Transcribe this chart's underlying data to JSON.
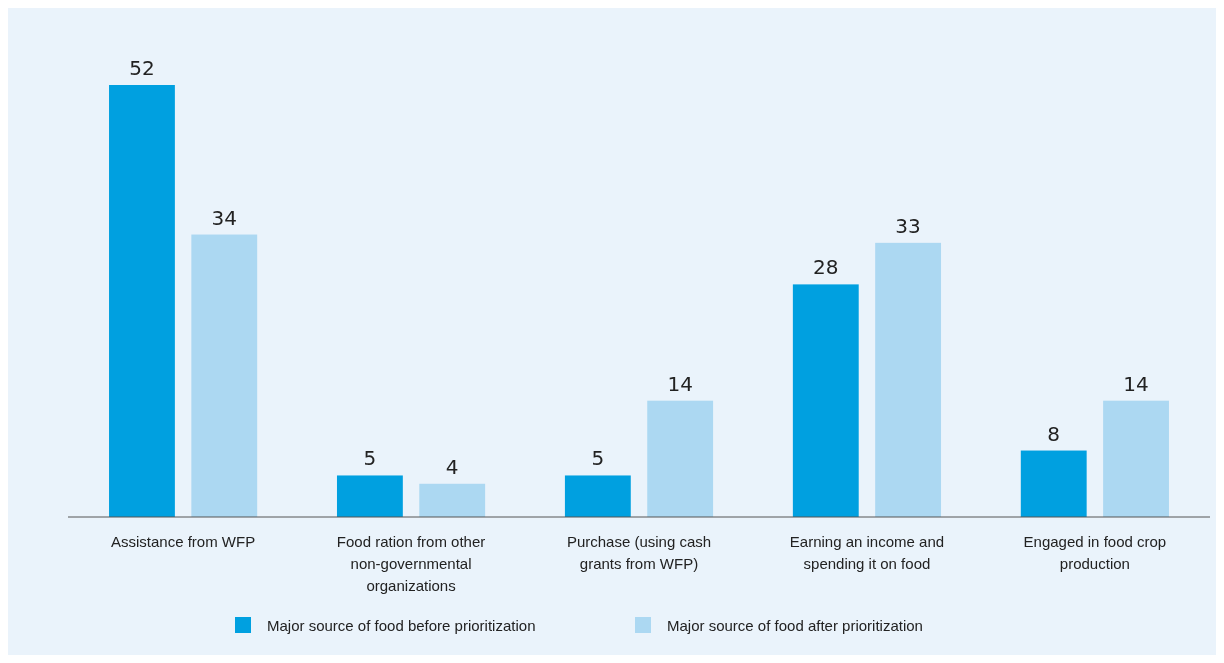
{
  "chart_data": {
    "type": "bar",
    "categories": [
      "Assistance from WFP",
      "Food ration from other non-governmental organizations",
      "Purchase (using cash grants from WFP)",
      "Earning an income and spending it on food",
      "Engaged in food crop production"
    ],
    "series": [
      {
        "name": "Major source of food before prioritization",
        "color": "#00a0e0",
        "values": [
          52,
          5,
          5,
          28,
          8
        ]
      },
      {
        "name": "Major source of food after prioritization",
        "color": "#acd8f2",
        "values": [
          34,
          4,
          14,
          33,
          14
        ]
      }
    ],
    "data_labels": true,
    "legend": "bottom",
    "grid": false
  }
}
